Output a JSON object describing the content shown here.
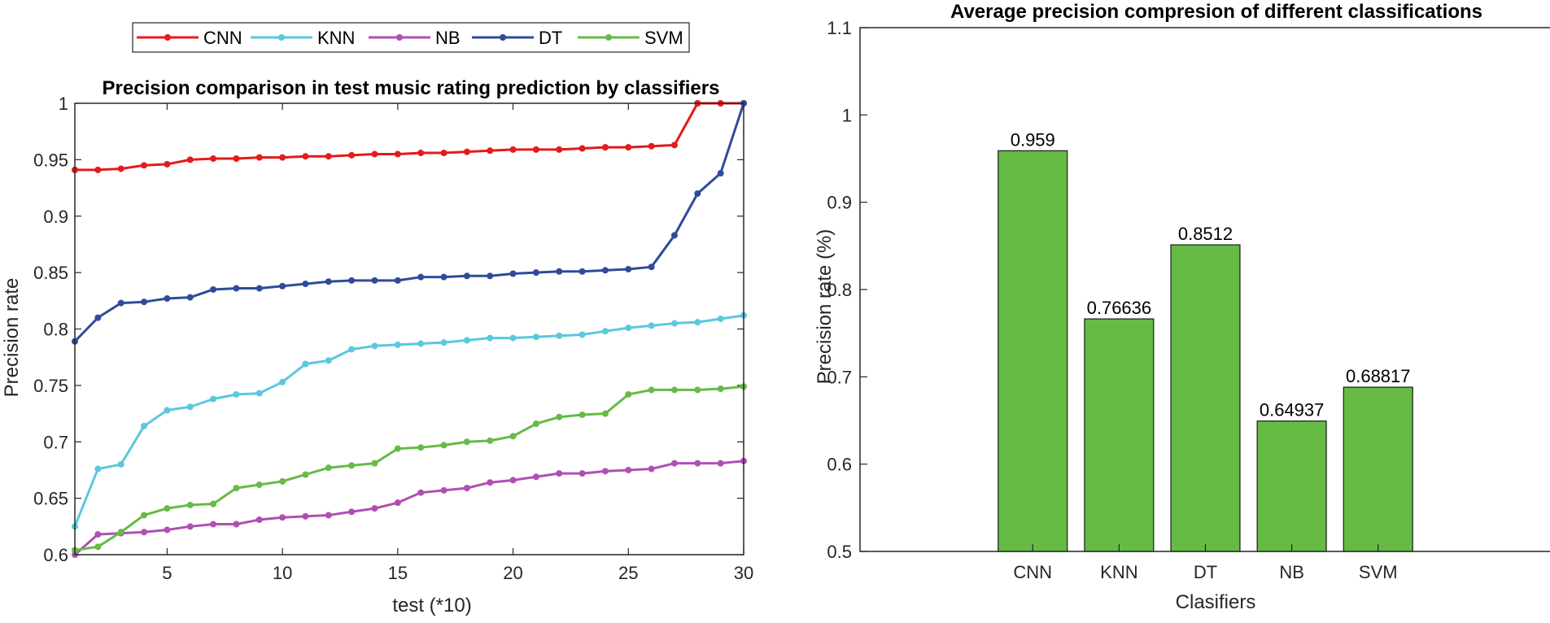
{
  "chart_data": [
    {
      "type": "line",
      "title": "Precision comparison in test music rating prediction by classifiers",
      "xlabel": "test (*10)",
      "ylabel": "Precision rate",
      "xlim": [
        1,
        30
      ],
      "ylim": [
        0.6,
        1.0
      ],
      "xticks": [
        5,
        10,
        15,
        20,
        25,
        30
      ],
      "yticks": [
        0.6,
        0.65,
        0.7,
        0.75,
        0.8,
        0.85,
        0.9,
        0.95,
        1
      ],
      "grid": false,
      "legend_placement": "top",
      "x": [
        1,
        2,
        3,
        4,
        5,
        6,
        7,
        8,
        9,
        10,
        11,
        12,
        13,
        14,
        15,
        16,
        17,
        18,
        19,
        20,
        21,
        22,
        23,
        24,
        25,
        26,
        27,
        28,
        29,
        30
      ],
      "series": [
        {
          "name": "CNN",
          "color": "#e41a1c",
          "values": [
            0.941,
            0.941,
            0.942,
            0.945,
            0.946,
            0.95,
            0.951,
            0.951,
            0.952,
            0.952,
            0.953,
            0.953,
            0.954,
            0.955,
            0.955,
            0.956,
            0.956,
            0.957,
            0.958,
            0.959,
            0.959,
            0.959,
            0.96,
            0.961,
            0.961,
            0.962,
            0.963,
            1.0,
            1.0,
            1.0
          ]
        },
        {
          "name": "KNN",
          "color": "#5bc8dc",
          "values": [
            0.625,
            0.676,
            0.68,
            0.714,
            0.728,
            0.731,
            0.738,
            0.742,
            0.743,
            0.753,
            0.769,
            0.772,
            0.782,
            0.785,
            0.786,
            0.787,
            0.788,
            0.79,
            0.792,
            0.792,
            0.793,
            0.794,
            0.795,
            0.798,
            0.801,
            0.803,
            0.805,
            0.806,
            0.809,
            0.812
          ]
        },
        {
          "name": "NB",
          "color": "#b04fb3",
          "values": [
            0.6,
            0.618,
            0.619,
            0.62,
            0.622,
            0.625,
            0.627,
            0.627,
            0.631,
            0.633,
            0.634,
            0.635,
            0.638,
            0.641,
            0.646,
            0.655,
            0.657,
            0.659,
            0.664,
            0.666,
            0.669,
            0.672,
            0.672,
            0.674,
            0.675,
            0.676,
            0.681,
            0.681,
            0.681,
            0.683
          ]
        },
        {
          "name": "DT",
          "color": "#2f4b9b",
          "values": [
            0.789,
            0.81,
            0.823,
            0.824,
            0.827,
            0.828,
            0.835,
            0.836,
            0.836,
            0.838,
            0.84,
            0.842,
            0.843,
            0.843,
            0.843,
            0.846,
            0.846,
            0.847,
            0.847,
            0.849,
            0.85,
            0.851,
            0.851,
            0.852,
            0.853,
            0.855,
            0.883,
            0.92,
            0.938,
            1.0
          ]
        },
        {
          "name": "SVM",
          "color": "#66bb44",
          "values": [
            0.604,
            0.607,
            0.62,
            0.635,
            0.641,
            0.644,
            0.645,
            0.659,
            0.662,
            0.665,
            0.671,
            0.677,
            0.679,
            0.681,
            0.694,
            0.695,
            0.697,
            0.7,
            0.701,
            0.705,
            0.716,
            0.722,
            0.724,
            0.725,
            0.742,
            0.746,
            0.746,
            0.746,
            0.747,
            0.749
          ]
        }
      ]
    },
    {
      "type": "bar",
      "title": "Average precision compresion of different classifications",
      "xlabel": "Clasifiers",
      "ylabel": "Precision rate (%)",
      "ylim": [
        0.5,
        1.1
      ],
      "yticks": [
        0.5,
        0.6,
        0.7,
        0.8,
        0.9,
        1,
        1.1
      ],
      "grid": false,
      "categories": [
        "CNN",
        "KNN",
        "DT",
        "NB",
        "SVM"
      ],
      "values": [
        0.959,
        0.76636,
        0.8512,
        0.64937,
        0.68817
      ],
      "data_labels": [
        "0.959",
        "0.76636",
        "0.8512",
        "0.64937",
        "0.68817"
      ],
      "bar_color": "#66bb44"
    }
  ]
}
